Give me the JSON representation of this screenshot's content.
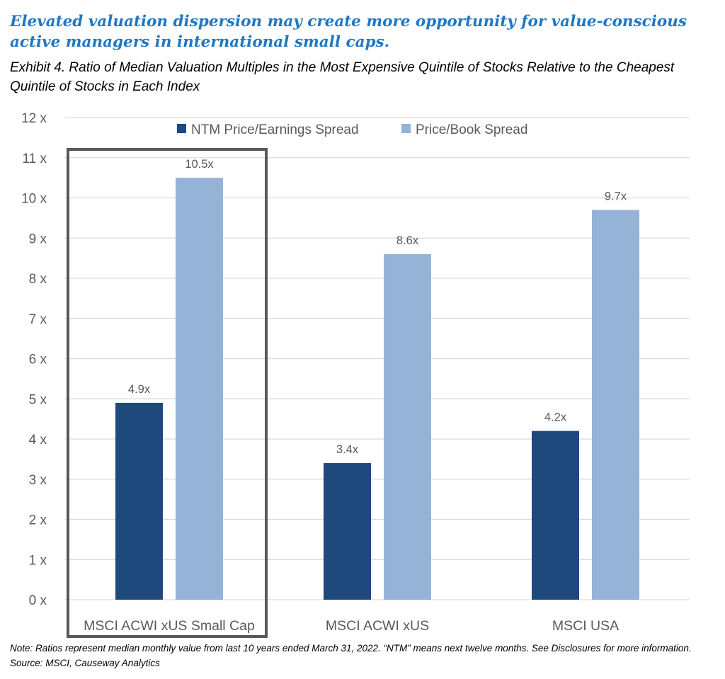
{
  "headline": "Elevated valuation dispersion may create more opportunity for value-conscious active managers in international small caps.",
  "exhibit_title": "Exhibit 4. Ratio of Median Valuation Multiples in the Most Expensive Quintile of Stocks Relative to the Cheapest Quintile of Stocks in Each Index",
  "note": "Note: Ratios represent median monthly value from last 10 years ended March 31, 2022.  “NTM” means next twelve months.  See Disclosures for more information.   Source: MSCI, Causeway Analytics",
  "chart_data": {
    "type": "bar",
    "categories": [
      "MSCI ACWI xUS Small Cap",
      "MSCI ACWI xUS",
      "MSCI USA"
    ],
    "series": [
      {
        "name": "NTM Price/Earnings Spread",
        "values": [
          4.9,
          3.4,
          4.2
        ],
        "labels": [
          "4.9x",
          "3.4x",
          "4.2x"
        ],
        "color": "#1f497d"
      },
      {
        "name": "Price/Book Spread",
        "values": [
          10.5,
          8.6,
          9.7
        ],
        "labels": [
          "10.5x",
          "8.6x",
          "9.7x"
        ],
        "color": "#95b3d7"
      }
    ],
    "ylim": [
      0,
      12
    ],
    "yticks": [
      "0 x",
      "1 x",
      "2 x",
      "3 x",
      "4 x",
      "5 x",
      "6 x",
      "7 x",
      "8 x",
      "9 x",
      "10 x",
      "11 x",
      "12 x"
    ],
    "grid": true,
    "legend_position": "top",
    "highlighted_category": "MSCI ACWI xUS Small Cap",
    "highlight_color": "#595959",
    "grid_color": "#d9d9d9",
    "text_color": "#595959"
  }
}
